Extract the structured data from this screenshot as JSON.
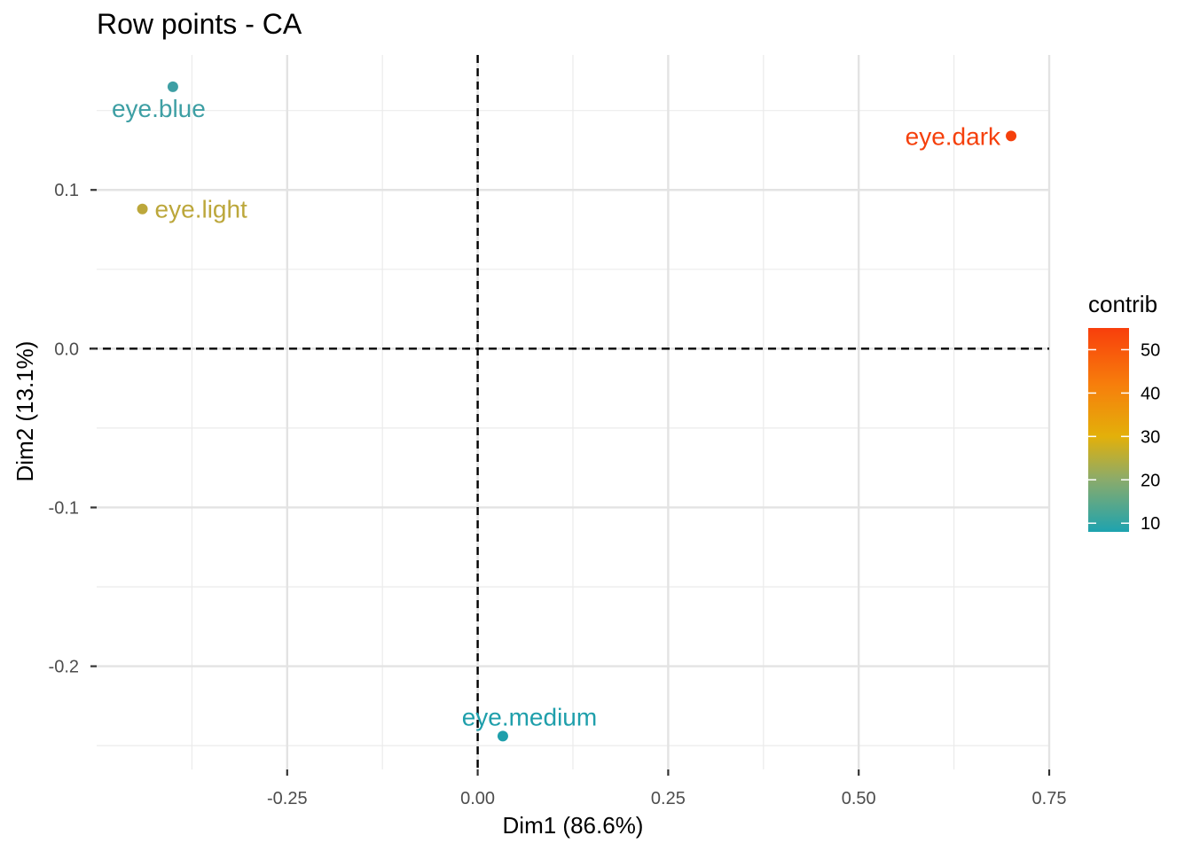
{
  "chart_data": {
    "type": "scatter",
    "title": "Row points - CA",
    "xlabel": "Dim1 (86.6%)",
    "ylabel": "Dim2 (13.1%)",
    "xlim": [
      -0.5,
      0.75
    ],
    "ylim": [
      -0.265,
      0.185
    ],
    "x_ticks": [
      -0.25,
      0.0,
      0.25,
      0.5,
      0.75
    ],
    "x_tick_labels": [
      "-0.25",
      "0.00",
      "0.25",
      "0.50",
      "0.75"
    ],
    "y_ticks": [
      0.1,
      0.0,
      -0.1,
      -0.2
    ],
    "y_tick_labels": [
      "0.1",
      "0.0",
      "-0.1",
      "-0.2"
    ],
    "grid": true,
    "reference_lines": {
      "x": 0,
      "y": 0,
      "style": "dashed"
    },
    "points": [
      {
        "label": "eye.blue",
        "x": -0.4,
        "y": 0.165,
        "contrib": 10,
        "color": "#3e9fa4",
        "label_position": "below"
      },
      {
        "label": "eye.light",
        "x": -0.44,
        "y": 0.088,
        "contrib": 17,
        "color": "#bca73b",
        "label_position": "right"
      },
      {
        "label": "eye.dark",
        "x": 0.7,
        "y": 0.134,
        "contrib": 54,
        "color": "#f5400c",
        "label_position": "left"
      },
      {
        "label": "eye.medium",
        "x": 0.033,
        "y": -0.244,
        "contrib": 9,
        "color": "#1f9fab",
        "label_position": "above"
      }
    ],
    "legend": {
      "title": "contrib",
      "position": "right",
      "type": "colorbar",
      "range": [
        8,
        55
      ],
      "ticks": [
        50,
        40,
        30,
        20,
        10
      ],
      "tick_labels": [
        "50",
        "40",
        "30",
        "20",
        "10"
      ],
      "gradient": [
        {
          "value": 8,
          "color": "#1ea3af"
        },
        {
          "value": 20,
          "color": "#8aab6b"
        },
        {
          "value": 30,
          "color": "#e3b00a"
        },
        {
          "value": 42,
          "color": "#f77e0c"
        },
        {
          "value": 55,
          "color": "#f83e0c"
        }
      ]
    }
  }
}
